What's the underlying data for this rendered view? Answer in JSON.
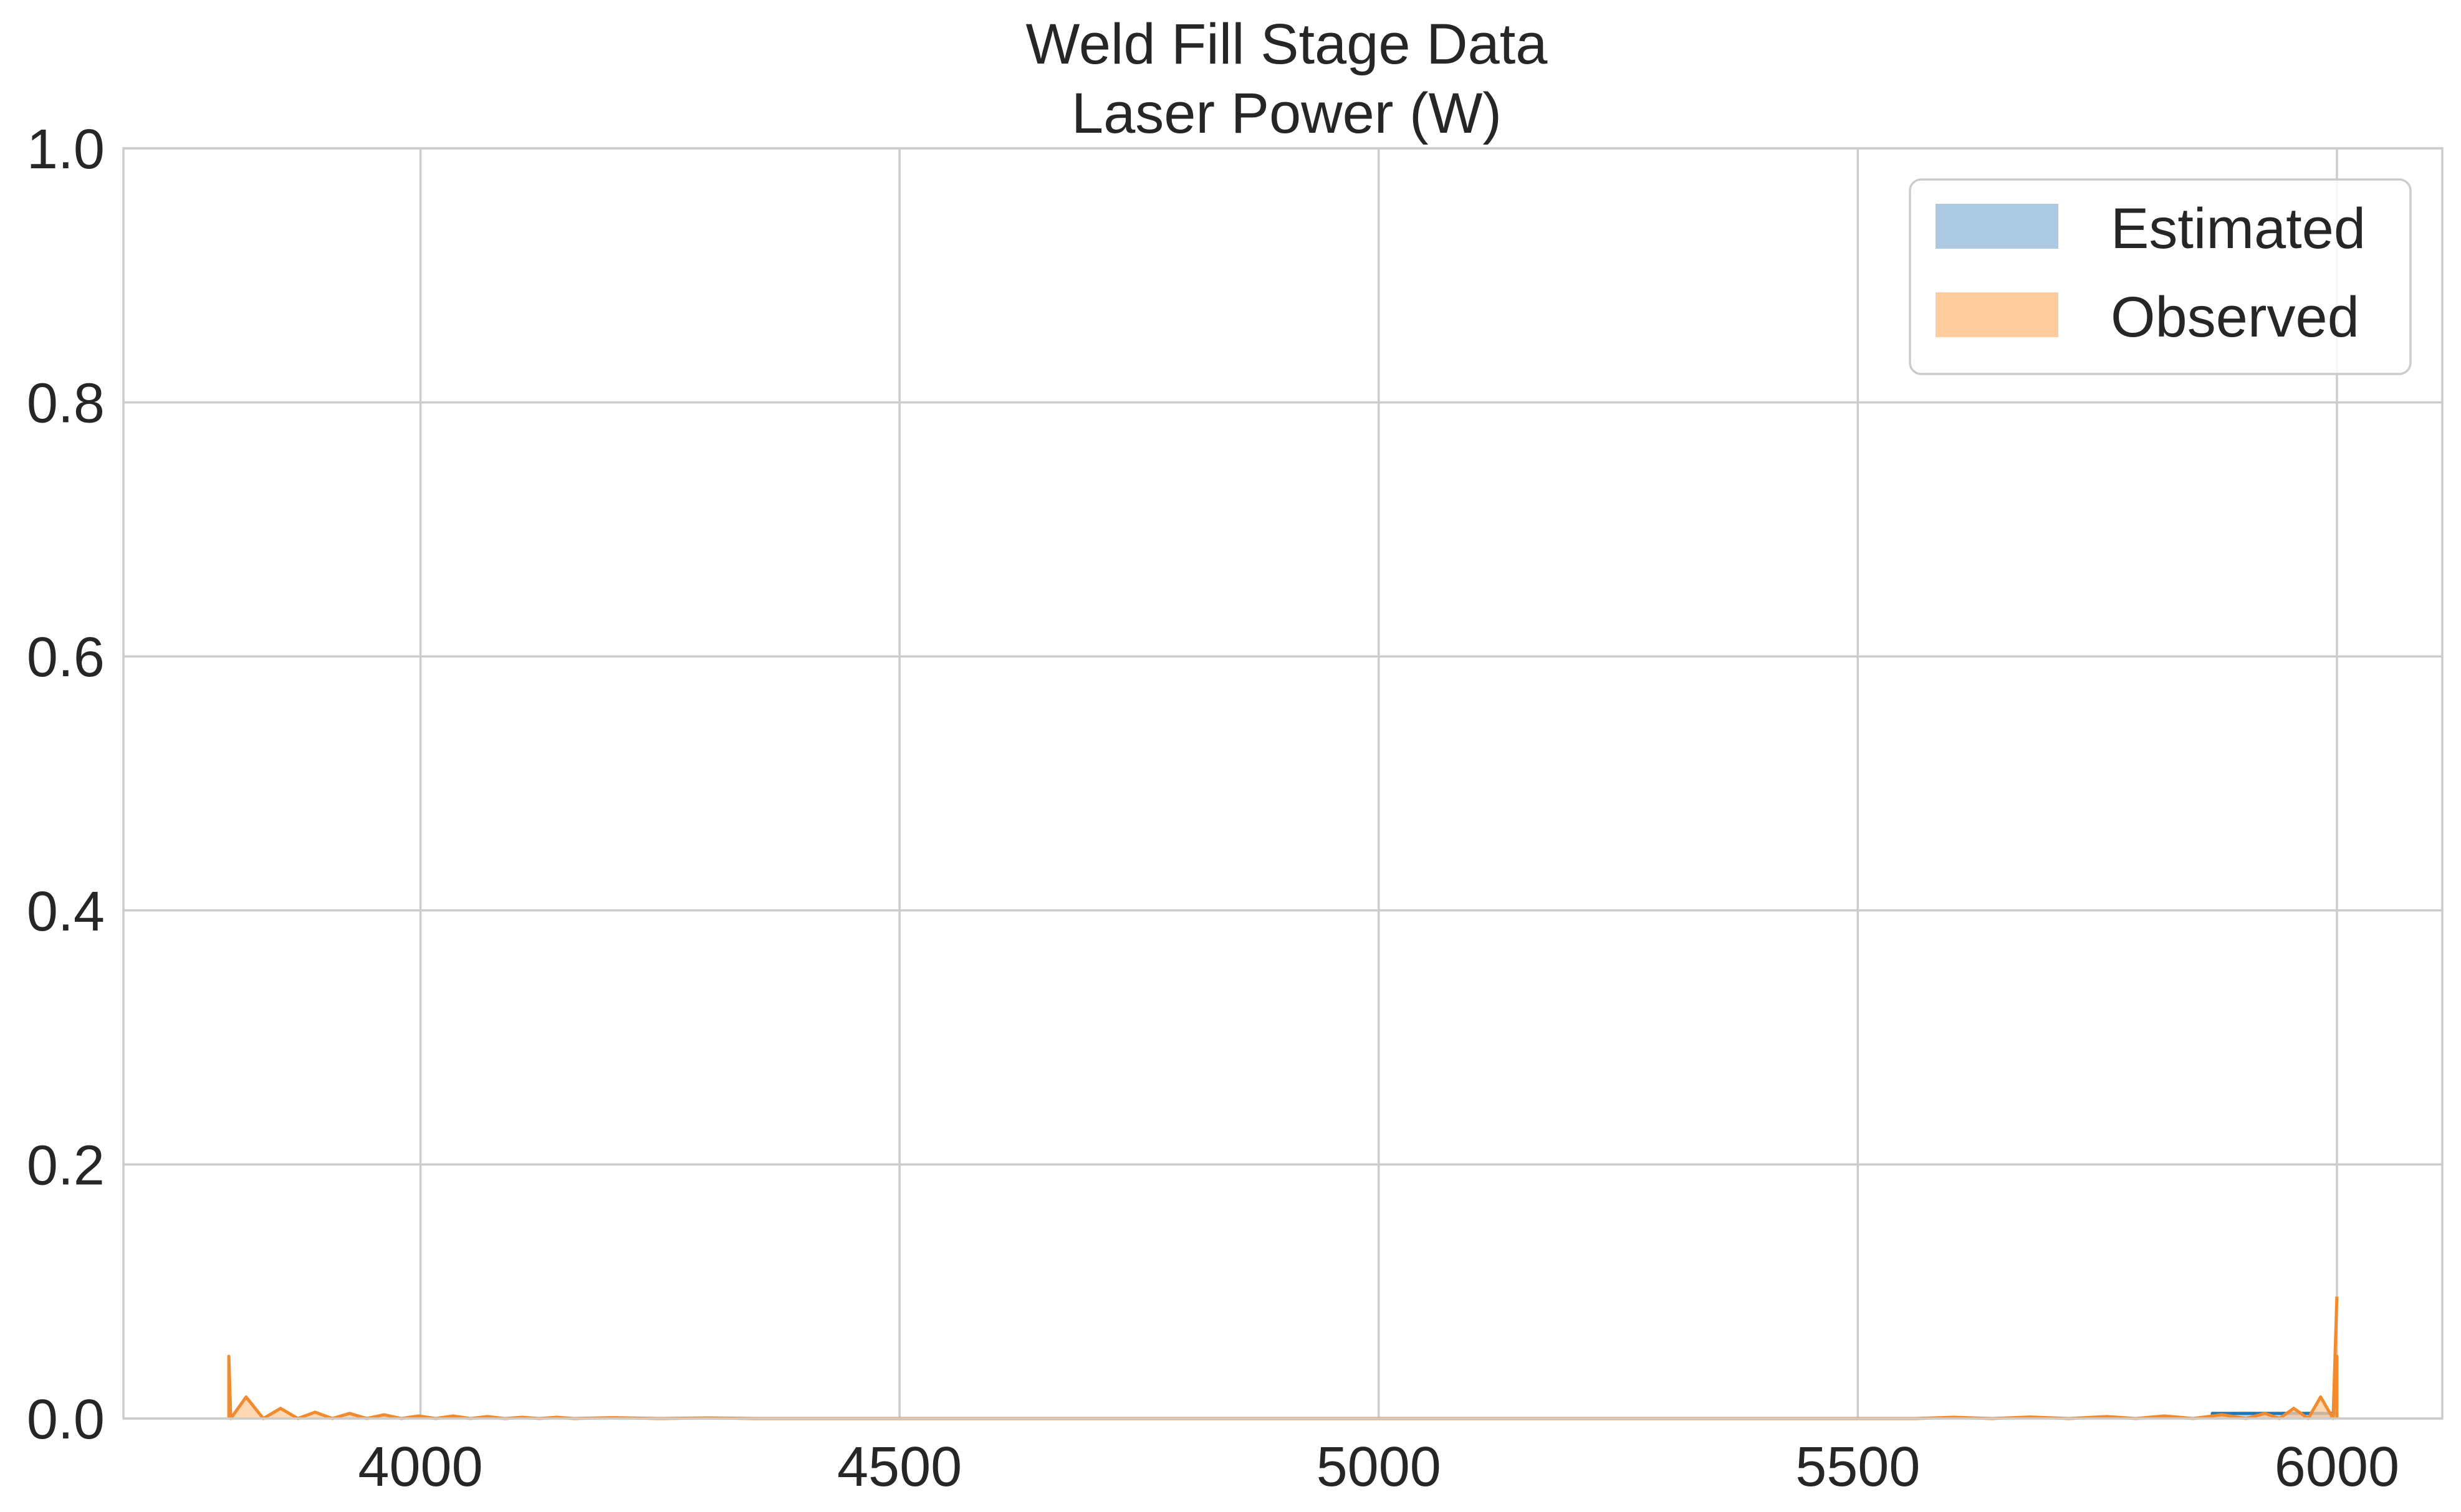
{
  "chart_data": {
    "type": "area",
    "title": [
      "Weld Fill Stage Data",
      "Laser Power (W)"
    ],
    "xlabel": "",
    "ylabel": "",
    "xlim": [
      3690,
      6110
    ],
    "ylim": [
      0.0,
      1.0
    ],
    "x_ticks": [
      4000,
      4500,
      5000,
      5500,
      6000
    ],
    "y_ticks": [
      0.0,
      0.2,
      0.4,
      0.6,
      0.8,
      1.0
    ],
    "x_tick_labels": [
      "4000",
      "4500",
      "5000",
      "5500",
      "6000"
    ],
    "y_tick_labels": [
      "0.0",
      "0.2",
      "0.4",
      "0.6",
      "0.8",
      "1.0"
    ],
    "grid": true,
    "legend_position": "top-right",
    "series": [
      {
        "name": "Estimated",
        "kind": "fill",
        "color": "#a6c6e0",
        "line_color": "#1f77b4",
        "points": [
          [
            5870,
            0.0
          ],
          [
            5870,
            0.004
          ],
          [
            5900,
            0.004
          ],
          [
            5930,
            0.004
          ],
          [
            5960,
            0.004
          ],
          [
            5990,
            0.004
          ],
          [
            6000,
            0.004
          ],
          [
            6000,
            0.0
          ]
        ]
      },
      {
        "name": "Observed",
        "kind": "fill",
        "color": "#ffc999",
        "line_color": "#f28a2e",
        "points": [
          [
            3800,
            0.0
          ],
          [
            3800,
            0.049
          ],
          [
            3802,
            0.0
          ],
          [
            3818,
            0.017
          ],
          [
            3836,
            0.0
          ],
          [
            3854,
            0.008
          ],
          [
            3872,
            0.0
          ],
          [
            3890,
            0.005
          ],
          [
            3908,
            0.0
          ],
          [
            3926,
            0.004
          ],
          [
            3944,
            0.0
          ],
          [
            3962,
            0.003
          ],
          [
            3980,
            0.0
          ],
          [
            3998,
            0.002
          ],
          [
            4016,
            0.0
          ],
          [
            4034,
            0.002
          ],
          [
            4052,
            0.0
          ],
          [
            4070,
            0.0015
          ],
          [
            4088,
            0.0
          ],
          [
            4106,
            0.001
          ],
          [
            4124,
            0.0
          ],
          [
            4142,
            0.001
          ],
          [
            4160,
            0.0
          ],
          [
            4200,
            0.0007
          ],
          [
            4250,
            0.0
          ],
          [
            4300,
            0.0005
          ],
          [
            4350,
            0.0
          ],
          [
            4400,
            0.0
          ],
          [
            5500,
            0.0
          ],
          [
            5560,
            0.0
          ],
          [
            5600,
            0.001
          ],
          [
            5640,
            0.0
          ],
          [
            5680,
            0.0012
          ],
          [
            5720,
            0.0
          ],
          [
            5760,
            0.0015
          ],
          [
            5790,
            0.0
          ],
          [
            5820,
            0.002
          ],
          [
            5850,
            0.0
          ],
          [
            5880,
            0.003
          ],
          [
            5905,
            0.0
          ],
          [
            5925,
            0.004
          ],
          [
            5940,
            0.0
          ],
          [
            5955,
            0.008
          ],
          [
            5970,
            0.0
          ],
          [
            5983,
            0.017
          ],
          [
            5996,
            0.0
          ],
          [
            6000,
            0.049
          ],
          [
            6000,
            0.0
          ]
        ],
        "peak_line": [
          [
            5996,
            0.0
          ],
          [
            6000,
            0.096
          ]
        ]
      }
    ]
  }
}
